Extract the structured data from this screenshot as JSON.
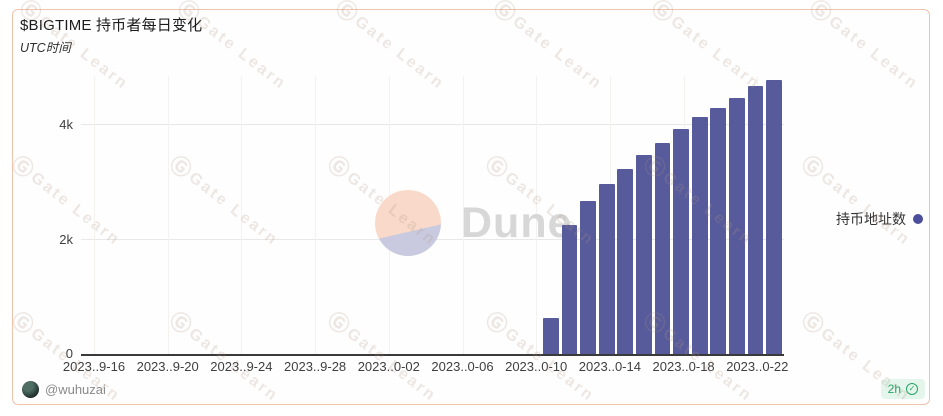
{
  "header": {
    "title": "$BIGTIME 持币者每日变化",
    "subtitle": "UTC时间"
  },
  "chart_data": {
    "type": "bar",
    "title": "$BIGTIME 持币者每日变化",
    "subtitle": "UTC时间",
    "series_name": "持币地址数",
    "categories": [
      "2023-10-10",
      "2023-10-11",
      "2023-10-12",
      "2023-10-13",
      "2023-10-14",
      "2023-10-15",
      "2023-10-16",
      "2023-10-17",
      "2023-10-18",
      "2023-10-19",
      "2023-10-20",
      "2023-10-21",
      "2023-10-22"
    ],
    "values": [
      630,
      2250,
      2670,
      2975,
      3225,
      3470,
      3690,
      3925,
      4140,
      4300,
      4480,
      4680,
      4780
    ],
    "x_tick_labels": [
      "2023..9-16",
      "2023..9-20",
      "2023..9-24",
      "2023..9-28",
      "2023..0-02",
      "2023..0-06",
      "2023..0-10",
      "2023..0-14",
      "2023..0-18",
      "2023..0-22"
    ],
    "y_ticks": [
      {
        "label": "0",
        "value": 0
      },
      {
        "label": "2k",
        "value": 2000
      },
      {
        "label": "4k",
        "value": 4000
      }
    ],
    "ylim": [
      0,
      4855
    ],
    "grid": true,
    "legend_position": "right",
    "bar_color": "#575a9b"
  },
  "legend": {
    "label": "持币地址数"
  },
  "brand_watermark": {
    "text": "Dune"
  },
  "tile_watermark": {
    "logo_glyph": "Ⓖ",
    "text": "Gate Learn"
  },
  "footer": {
    "author_handle": "@wuhuzai",
    "badge_label": "2h"
  },
  "colors": {
    "bar": "#575a9b",
    "legend_dot": "#4b4e9a",
    "card_border": "#f0c3ab",
    "badge_bg": "#e4f6ec",
    "badge_text": "#27a567",
    "dune_text": "#d7d7d7",
    "dune_circle_top": "#f9d9ca",
    "dune_circle_bottom": "#c9cadf"
  }
}
